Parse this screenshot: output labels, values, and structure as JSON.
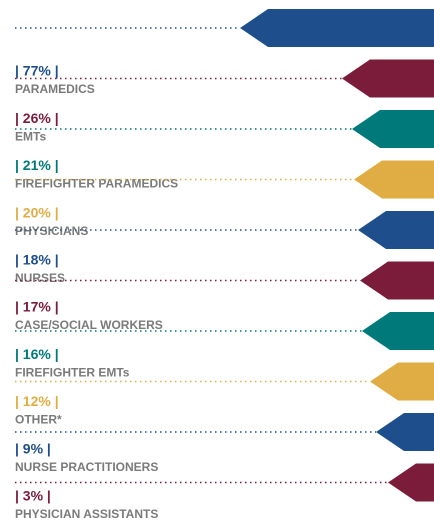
{
  "chart_data": {
    "type": "bar",
    "categories": [
      "PARAMEDICS",
      "EMTs",
      "FIREFIGHTER PARAMEDICS",
      "PHYSICIANS",
      "NURSES",
      "CASE/SOCIAL WORKERS",
      "FIREFIGHTER EMTs",
      "OTHER*",
      "NURSE PRACTITIONERS",
      "PHYSICIAN ASSISTANTS"
    ],
    "values": [
      77,
      26,
      21,
      20,
      18,
      17,
      16,
      12,
      9,
      3
    ],
    "value_labels": [
      "| 77% |",
      "| 26% |",
      "| 21% |",
      "| 20% |",
      "| 18% |",
      "| 17% |",
      "| 16% |",
      "| 12% |",
      "| 9% |",
      "| 3% |"
    ],
    "colors": [
      "#1f4e8c",
      "#7b1c3a",
      "#00797b",
      "#e0ad45",
      "#1f4e8c",
      "#7b1c3a",
      "#00797b",
      "#e0ad45",
      "#1f4e8c",
      "#7b1c3a"
    ]
  }
}
